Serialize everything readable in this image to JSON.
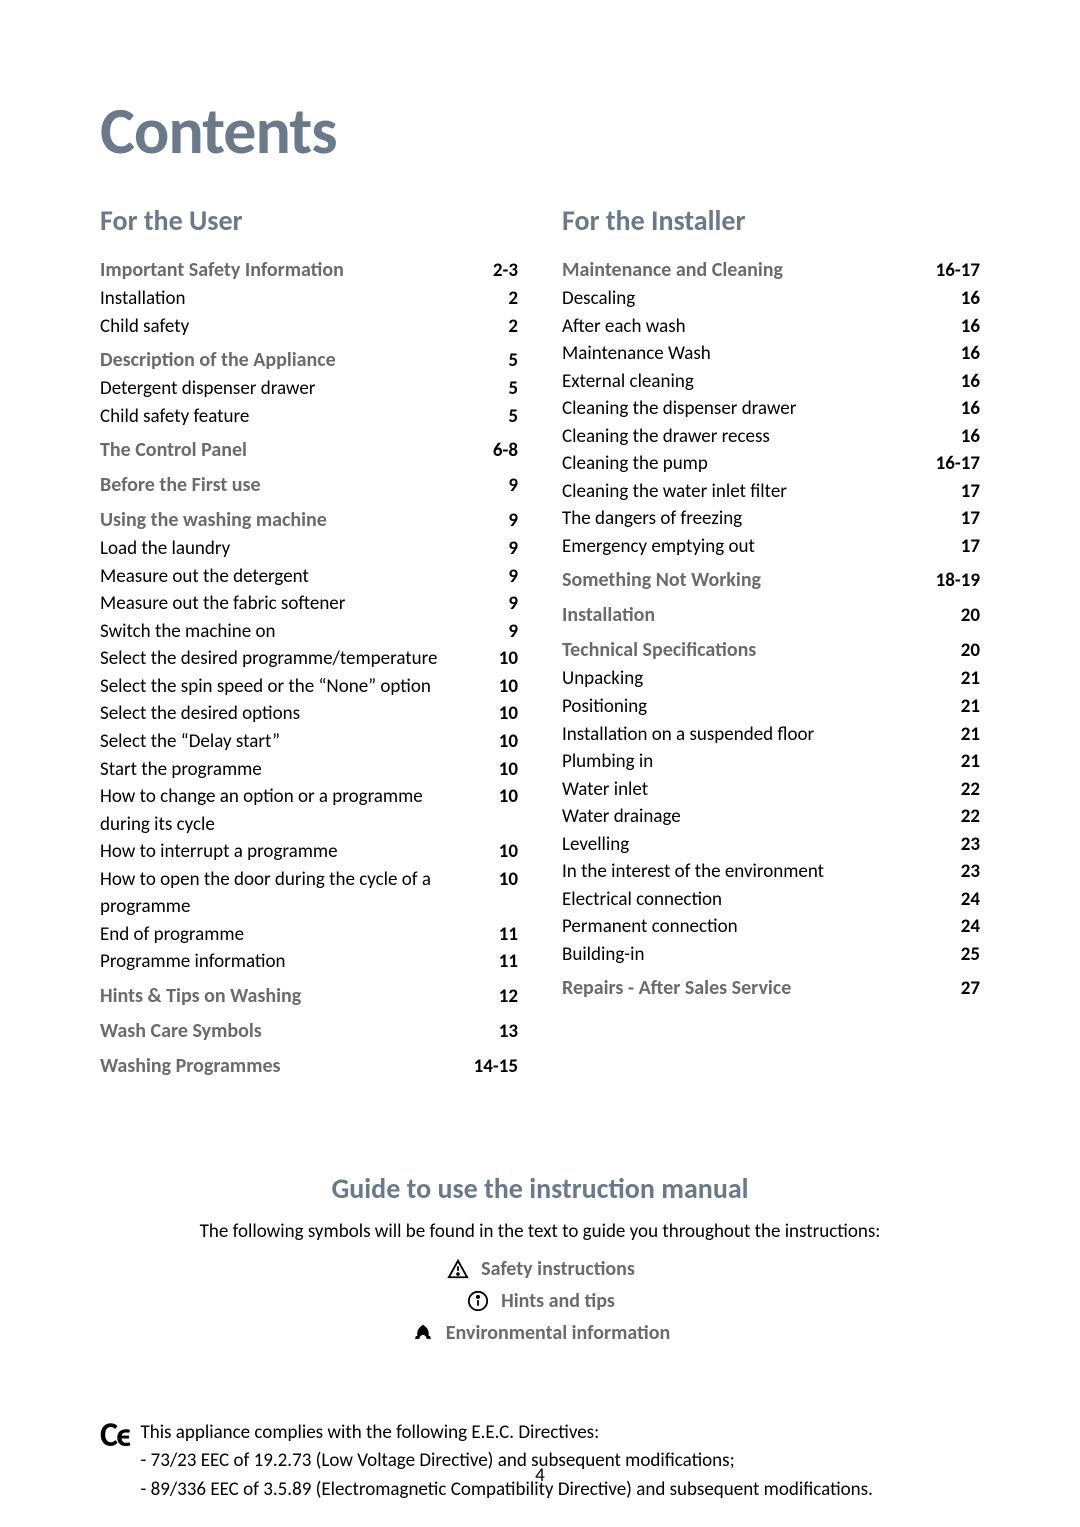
{
  "title": "Contents",
  "left": {
    "heading": "For the User",
    "sections": [
      {
        "label": "Important Safety Information",
        "page": "2-3",
        "items": [
          {
            "label": "Installation",
            "page": "2"
          },
          {
            "label": "Child safety",
            "page": "2"
          }
        ]
      },
      {
        "label": "Description of the Appliance",
        "page": "5",
        "items": [
          {
            "label": "Detergent dispenser drawer",
            "page": "5"
          },
          {
            "label": "Child safety feature",
            "page": "5"
          }
        ]
      },
      {
        "label": "The Control Panel",
        "page": "6-8",
        "items": []
      },
      {
        "label": "Before the First use",
        "page": "9",
        "items": []
      },
      {
        "label": "Using the washing machine",
        "page": "9",
        "items": [
          {
            "label": "Load the laundry",
            "page": "9"
          },
          {
            "label": "Measure out the detergent",
            "page": "9"
          },
          {
            "label": "Measure out the fabric softener",
            "page": "9"
          },
          {
            "label": "Switch the machine on",
            "page": "9"
          },
          {
            "label": "Select the desired programme/temperature",
            "page": "10"
          },
          {
            "label": "Select the spin speed or the “None” option",
            "page": "10"
          },
          {
            "label": "Select the desired options",
            "page": "10"
          },
          {
            "label": "Select the “Delay start”",
            "page": "10"
          },
          {
            "label": "Start the programme",
            "page": "10"
          },
          {
            "label": "How to change an option or a programme during its cycle",
            "page": "10"
          },
          {
            "label": "How to interrupt a programme",
            "page": "10"
          },
          {
            "label": "How to open the door during the cycle of a programme",
            "page": "10"
          },
          {
            "label": "End of programme",
            "page": "11"
          },
          {
            "label": "Programme information",
            "page": "11"
          }
        ]
      },
      {
        "label": "Hints & Tips on Washing",
        "page": "12",
        "items": []
      },
      {
        "label": "Wash Care Symbols",
        "page": "13",
        "items": []
      },
      {
        "label": "Washing Programmes",
        "page": "14-15",
        "items": []
      }
    ]
  },
  "right": {
    "heading": "For the Installer",
    "sections": [
      {
        "label": "Maintenance and Cleaning",
        "page": "16-17",
        "items": [
          {
            "label": "Descaling",
            "page": "16"
          },
          {
            "label": "After each wash",
            "page": "16"
          },
          {
            "label": "Maintenance Wash",
            "page": "16"
          },
          {
            "label": "External cleaning",
            "page": "16"
          },
          {
            "label": "Cleaning the dispenser drawer",
            "page": "16"
          },
          {
            "label": "Cleaning the drawer recess",
            "page": "16"
          },
          {
            "label": "Cleaning the pump",
            "page": "16-17"
          },
          {
            "label": "Cleaning the water inlet filter",
            "page": "17"
          },
          {
            "label": "The dangers of freezing",
            "page": "17"
          },
          {
            "label": "Emergency emptying out",
            "page": "17"
          }
        ]
      },
      {
        "label": "Something Not Working",
        "page": "18-19",
        "items": []
      },
      {
        "label": "Installation",
        "page": "20",
        "items": []
      },
      {
        "label": "Technical Specifications",
        "page": "20",
        "items": [
          {
            "label": "Unpacking",
            "page": "21"
          },
          {
            "label": "Positioning",
            "page": "21"
          },
          {
            "label": "Installation on a suspended floor",
            "page": "21"
          },
          {
            "label": "Plumbing in",
            "page": "21"
          },
          {
            "label": "Water inlet",
            "page": "22"
          },
          {
            "label": "Water drainage",
            "page": "22"
          },
          {
            "label": "Levelling",
            "page": "23"
          },
          {
            "label": "In the interest of the environment",
            "page": "23"
          },
          {
            "label": "Electrical connection",
            "page": "24"
          },
          {
            "label": "Permanent connection",
            "page": "24"
          },
          {
            "label": "Building-in",
            "page": "25"
          }
        ]
      },
      {
        "label": "Repairs - After Sales Service",
        "page": "27",
        "items": []
      }
    ]
  },
  "guide": {
    "title": "Guide to use the instruction manual",
    "intro": "The following symbols will be found in the text to guide you throughout the instructions:",
    "lines": [
      {
        "icon": "warning",
        "label": "Safety instructions"
      },
      {
        "icon": "info",
        "label": "Hints and tips"
      },
      {
        "icon": "leaf",
        "label": "Environmental information"
      }
    ]
  },
  "ce": {
    "lead": "This appliance complies with the following E.E.C. Directives:",
    "line1": "- 73/23 EEC of 19.2.73 (Low Voltage Directive) and subsequent modifications;",
    "line2": "- 89/336 EEC of 3.5.89 (Electromagnetic Compatibility Directive) and subsequent modifications."
  },
  "pageNumber": "4",
  "colors": {
    "heading": "#6b7a8a",
    "section": "#6b6b6b",
    "text": "#000000",
    "background": "#ffffff"
  }
}
